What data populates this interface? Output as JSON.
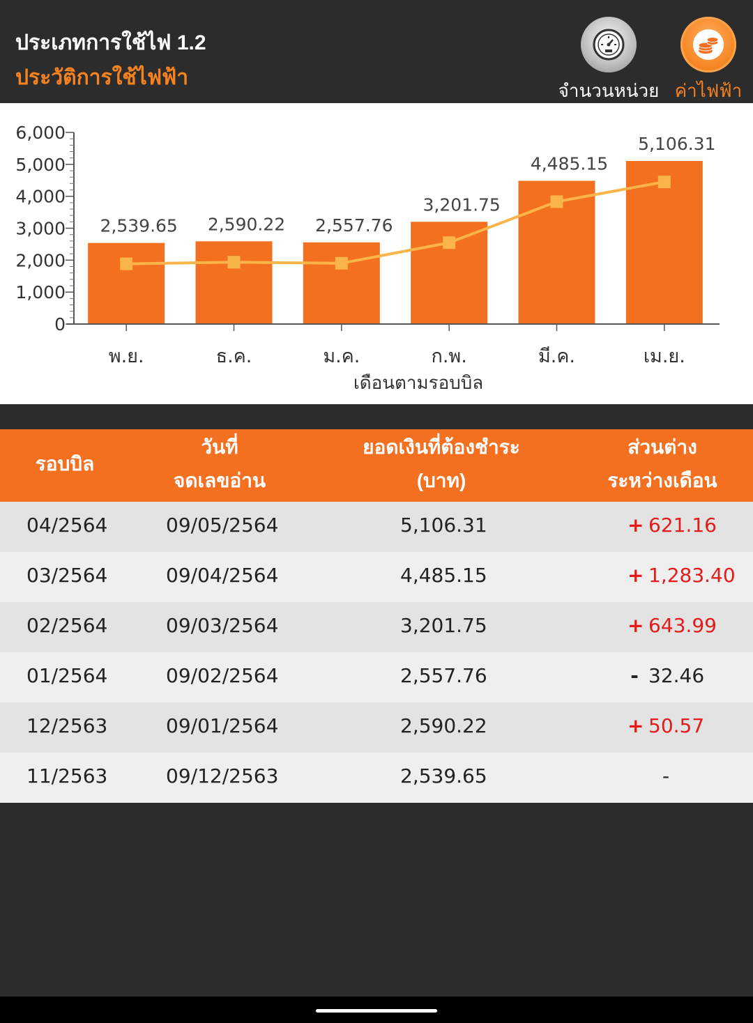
{
  "header": {
    "title": "ประเภทการใช้ไฟ 1.2",
    "subtitle": "ประวัติการใช้ไฟฟ้า",
    "btn_units_label": "จำนวนหน่วย",
    "btn_cost_label": "ค่าไฟฟ้า",
    "accent": "#f5821f"
  },
  "chart_data": {
    "type": "bar",
    "categories": [
      "พ.ย.",
      "ธ.ค.",
      "ม.ค.",
      "ก.พ.",
      "มี.ค.",
      "เม.ย."
    ],
    "values": [
      2539.65,
      2590.22,
      2557.76,
      3201.75,
      4485.15,
      5106.31
    ],
    "value_labels": [
      "2,539.65",
      "2,590.22",
      "2,557.76",
      "3,201.75",
      "4,485.15",
      "5,106.31"
    ],
    "overlay_line": true,
    "xlabel": "เดือนตามรอบบิล",
    "ylabel": "",
    "ylim": [
      0,
      6000
    ],
    "yticks": [
      0,
      1000,
      2000,
      3000,
      4000,
      5000,
      6000
    ],
    "ytick_labels": [
      "0",
      "1,000",
      "2,000",
      "3,000",
      "4,000",
      "5,000",
      "6,000"
    ],
    "bar_color": "#f37021",
    "line_color": "#f9b54a",
    "grid": false
  },
  "table": {
    "headers": {
      "bill_cycle": "รอบบิล",
      "read_date_1": "วันที่",
      "read_date_2": "จดเลขอ่าน",
      "amount_1": "ยอดเงินที่ต้องชำระ",
      "amount_2": "(บาท)",
      "diff_1": "ส่วนต่าง",
      "diff_2": "ระหว่างเดือน"
    },
    "rows": [
      {
        "cycle": "04/2564",
        "date": "09/05/2564",
        "amount": "5,106.31",
        "sign": "+",
        "diff": "621.16"
      },
      {
        "cycle": "03/2564",
        "date": "09/04/2564",
        "amount": "4,485.15",
        "sign": "+",
        "diff": "1,283.40"
      },
      {
        "cycle": "02/2564",
        "date": "09/03/2564",
        "amount": "3,201.75",
        "sign": "+",
        "diff": "643.99"
      },
      {
        "cycle": "01/2564",
        "date": "09/02/2564",
        "amount": "2,557.76",
        "sign": "-",
        "diff": "32.46"
      },
      {
        "cycle": "12/2563",
        "date": "09/01/2564",
        "amount": "2,590.22",
        "sign": "+",
        "diff": "50.57"
      },
      {
        "cycle": "11/2563",
        "date": "09/12/2563",
        "amount": "2,539.65",
        "sign": "",
        "diff": "-"
      }
    ],
    "positive_color": "#e31b1b",
    "header_color": "#f37021"
  }
}
